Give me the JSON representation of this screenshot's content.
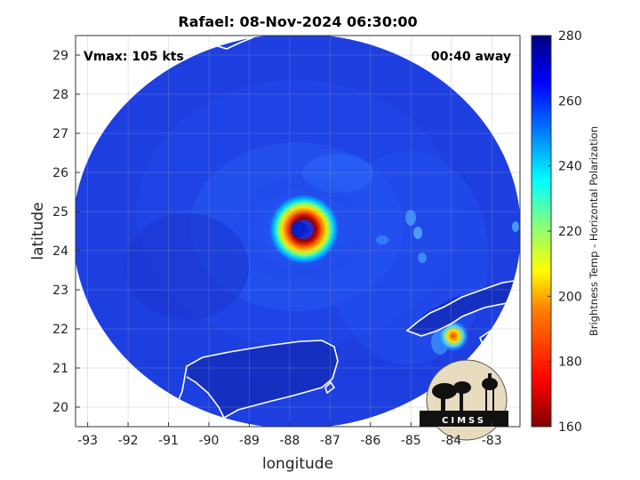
{
  "map": {
    "title": "Rafael: 08-Nov-2024 06:30:00",
    "vmax_label": "Vmax: 105 kts",
    "time_away_label": "00:40 away",
    "xlabel": "longitude",
    "ylabel": "latitude",
    "lon_range": [
      -93.3,
      -82.3
    ],
    "lat_range": [
      19.5,
      29.5
    ],
    "lon_ticks": [
      -93,
      -92,
      -91,
      -90,
      -89,
      -88,
      -87,
      -86,
      -85,
      -84,
      -83
    ],
    "lat_ticks": [
      20,
      21,
      22,
      23,
      24,
      25,
      26,
      27,
      28,
      29
    ],
    "storm_center": {
      "lon": -87.9,
      "lat": 24.45
    },
    "scan_center": {
      "lon": -87.9,
      "lat": 24.5
    },
    "logo_text": "CIMSS",
    "colors": {
      "background_blue": "#1e3fe0",
      "eyewall_red": "#b00000",
      "coastline": "#ffffff"
    }
  },
  "colorbar": {
    "label": "Brightness Temp - Horizontal Polarization",
    "min": 160,
    "max": 280,
    "ticks": [
      160,
      180,
      200,
      220,
      240,
      260,
      280
    ],
    "colormap": "jet"
  }
}
